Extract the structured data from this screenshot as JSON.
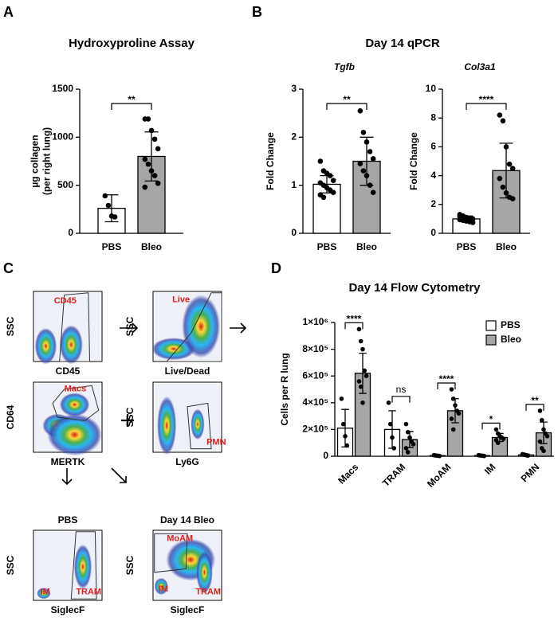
{
  "panel_labels": [
    "A",
    "B",
    "C",
    "D"
  ],
  "qpcr_title": "Day 14 qPCR",
  "chart_data": [
    {
      "type": "bar",
      "title": "Hydroxyproline Assay",
      "ylabel": [
        "µg collagen",
        "(per right lung)"
      ],
      "categories": [
        "PBS",
        "Bleo"
      ],
      "values": [
        260,
        800
      ],
      "errors": [
        140,
        255
      ],
      "colors": [
        "#ffffff",
        "#a6a6a6"
      ],
      "points": [
        [
          390,
          290,
          180,
          170
        ],
        [
          1190,
          1190,
          1070,
          980,
          880,
          770,
          720,
          650,
          600,
          520,
          480
        ]
      ],
      "ylim": [
        0,
        1500
      ],
      "yticks": [
        0,
        500,
        1000,
        1500
      ],
      "significance": "**"
    },
    {
      "type": "bar",
      "title": "Tgfb",
      "ylabel": [
        "Fold Change"
      ],
      "categories": [
        "PBS",
        "Bleo"
      ],
      "values": [
        1.02,
        1.5
      ],
      "errors": [
        0.18,
        0.5
      ],
      "colors": [
        "#ffffff",
        "#a6a6a6"
      ],
      "points": [
        [
          1.5,
          1.3,
          1.25,
          1.2,
          1.1,
          1.05,
          1.0,
          0.95,
          0.9,
          0.85,
          0.8,
          0.75
        ],
        [
          2.55,
          2.1,
          1.9,
          1.7,
          1.55,
          1.45,
          1.3,
          1.2,
          1.0,
          0.85
        ]
      ],
      "ylim": [
        0,
        3
      ],
      "yticks": [
        0,
        1,
        2,
        3
      ],
      "significance": "**"
    },
    {
      "type": "bar",
      "title": "Col3a1",
      "ylabel": [
        "Fold Change"
      ],
      "categories": [
        "PBS",
        "Bleo"
      ],
      "values": [
        1.0,
        4.35
      ],
      "errors": [
        0.2,
        1.9
      ],
      "colors": [
        "#ffffff",
        "#a6a6a6"
      ],
      "points": [
        [
          1.3,
          1.2,
          1.1,
          1.05,
          1.0,
          0.95,
          0.9,
          0.85,
          0.8,
          0.75,
          1.15,
          0.9
        ],
        [
          8.2,
          7.8,
          6.0,
          4.8,
          4.5,
          3.8,
          3.2,
          2.8,
          2.5,
          2.4
        ]
      ],
      "ylim": [
        0,
        10
      ],
      "yticks": [
        0,
        2,
        4,
        6,
        8,
        10
      ],
      "significance": "****"
    },
    {
      "type": "grouped_bar",
      "title": "Day 14 Flow Cytometry",
      "ylabel": [
        "Cells per R lung"
      ],
      "categories": [
        "Macs",
        "TRAM",
        "MoAM",
        "IM",
        "PMN"
      ],
      "series": [
        {
          "name": "PBS",
          "color": "#ffffff",
          "values": [
            210000,
            200000,
            5000,
            5000,
            10000
          ],
          "errors": [
            140000,
            140000,
            3000,
            3000,
            5000
          ],
          "points": [
            [
              430000,
              240000,
              150000,
              80000
            ],
            [
              400000,
              240000,
              140000,
              60000
            ],
            [
              8000,
              6000,
              4000,
              2000
            ],
            [
              8000,
              6000,
              4000,
              2000
            ],
            [
              15000,
              12000,
              8000,
              5000
            ]
          ]
        },
        {
          "name": "Bleo",
          "color": "#a6a6a6",
          "values": [
            620000,
            125000,
            340000,
            140000,
            175000
          ],
          "errors": [
            150000,
            60000,
            90000,
            30000,
            80000
          ],
          "points": [
            [
              950000,
              860000,
              800000,
              640000,
              600000,
              560000,
              520000,
              400000
            ],
            [
              240000,
              180000,
              140000,
              110000,
              90000,
              60000,
              30000
            ],
            [
              500000,
              430000,
              380000,
              340000,
              320000,
              280000,
              200000
            ],
            [
              200000,
              170000,
              150000,
              140000,
              130000,
              120000,
              100000
            ],
            [
              340000,
              270000,
              200000,
              170000,
              150000,
              110000,
              60000,
              40000
            ]
          ]
        }
      ],
      "annotations": [
        "****",
        "ns",
        "****",
        "*",
        "**"
      ],
      "ylim": [
        0,
        1000000
      ],
      "yticks": [
        0,
        {
          "value": 200000,
          "label": "2×10⁵"
        },
        {
          "value": 400000,
          "label": "4×10⁵"
        },
        {
          "value": 600000,
          "label": "6×10⁵"
        },
        {
          "value": 800000,
          "label": "8×10⁵"
        },
        {
          "value": 1000000,
          "label": "1×10⁶"
        }
      ],
      "legend": "top-right"
    }
  ],
  "flow": {
    "plots": [
      {
        "xlabel": "CD45",
        "ylabel": "SSC",
        "gates": [
          "CD45"
        ]
      },
      {
        "xlabel": "Live/Dead",
        "ylabel": "SSC",
        "gates": [
          "Live"
        ]
      },
      {
        "xlabel": "MERTK",
        "ylabel": "CD64",
        "gates": [
          "Macs"
        ]
      },
      {
        "xlabel": "Ly6G",
        "ylabel": "SSC",
        "gates": [
          "PMN"
        ]
      },
      {
        "title": "PBS",
        "xlabel": "SiglecF",
        "ylabel": "SSC",
        "gates": [
          "IM",
          "TRAM"
        ]
      },
      {
        "title": "Day 14 Bleo",
        "xlabel": "SiglecF",
        "ylabel": "SSC",
        "gates": [
          "MoAM",
          "IM",
          "TRAM"
        ]
      }
    ]
  }
}
